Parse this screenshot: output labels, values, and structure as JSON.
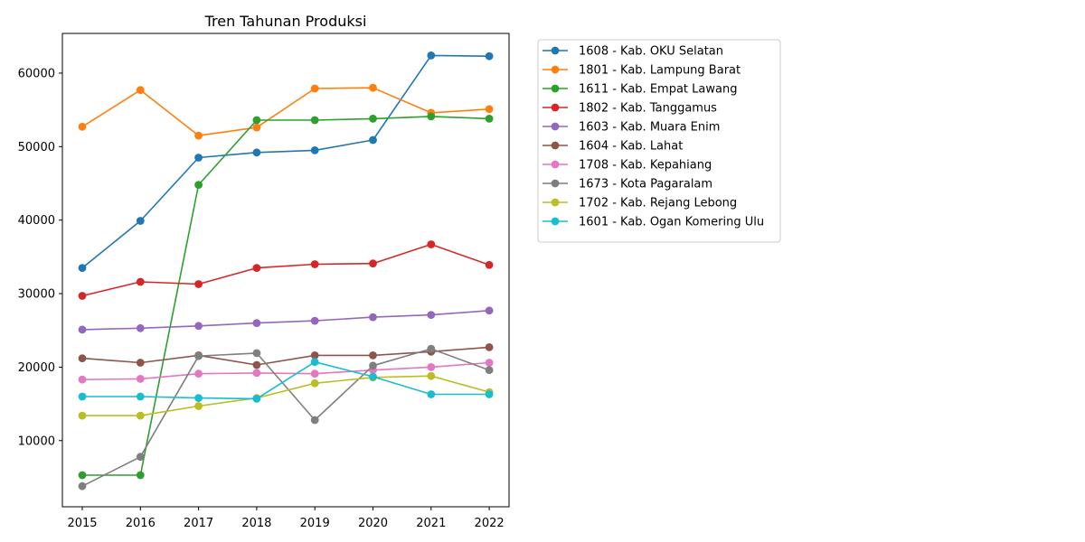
{
  "chart_data": {
    "type": "line",
    "title": "Tren Tahunan Produksi",
    "xlabel": "",
    "ylabel": "",
    "x": [
      "2015",
      "2016",
      "2017",
      "2018",
      "2019",
      "2020",
      "2021",
      "2022"
    ],
    "yticks": [
      10000,
      20000,
      30000,
      40000,
      50000,
      60000
    ],
    "ylim": [
      1000,
      65400
    ],
    "grid": false,
    "legend_position": "outside-right",
    "series": [
      {
        "name": "1608 - Kab. OKU Selatan",
        "color": "#1f77b4",
        "values": [
          33500,
          39900,
          48500,
          49200,
          49500,
          50900,
          62400,
          62300
        ]
      },
      {
        "name": "1801 - Kab. Lampung Barat",
        "color": "#ff7f0e",
        "values": [
          52700,
          57700,
          51500,
          52600,
          57900,
          58000,
          54600,
          55100
        ]
      },
      {
        "name": "1611 - Kab. Empat Lawang",
        "color": "#2ca02c",
        "values": [
          5300,
          5300,
          44800,
          53600,
          53600,
          53800,
          54100,
          53800
        ]
      },
      {
        "name": "1802 - Kab. Tanggamus",
        "color": "#d62728",
        "values": [
          29700,
          31600,
          31300,
          33500,
          34000,
          34100,
          36700,
          33900
        ]
      },
      {
        "name": "1603 - Kab. Muara Enim",
        "color": "#9467bd",
        "values": [
          25100,
          25300,
          25600,
          26000,
          26300,
          26800,
          27100,
          27700
        ]
      },
      {
        "name": "1604 - Kab. Lahat",
        "color": "#8c564b",
        "values": [
          21200,
          20600,
          21600,
          20300,
          21600,
          21600,
          22100,
          22700
        ]
      },
      {
        "name": "1708 - Kab. Kepahiang",
        "color": "#e377c2",
        "values": [
          18300,
          18400,
          19100,
          19200,
          19100,
          19600,
          20000,
          20600
        ]
      },
      {
        "name": "1673 - Kota Pagaralam",
        "color": "#7f7f7f",
        "values": [
          3800,
          7800,
          21500,
          21900,
          12800,
          20200,
          22500,
          19600
        ]
      },
      {
        "name": "1702 - Kab. Rejang Lebong",
        "color": "#bcbd22",
        "values": [
          13400,
          13400,
          14700,
          15800,
          17800,
          18600,
          18800,
          16600
        ]
      },
      {
        "name": "1601 - Kab. Ogan Komering Ulu",
        "color": "#17becf",
        "values": [
          16000,
          16000,
          15800,
          15700,
          20700,
          18700,
          16300,
          16300
        ]
      }
    ]
  }
}
